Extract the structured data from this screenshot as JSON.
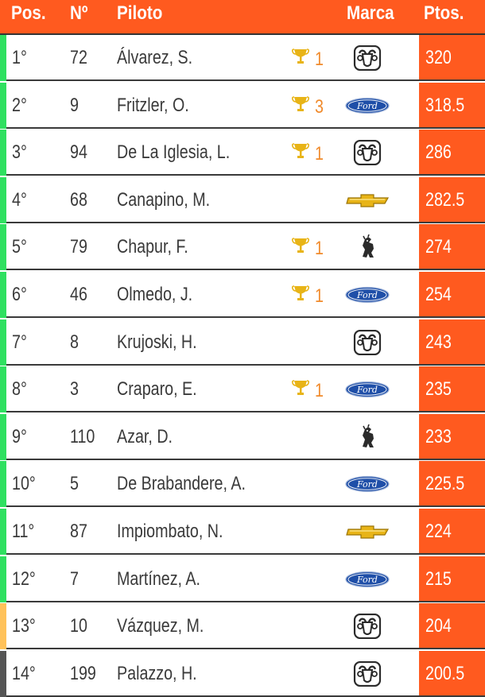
{
  "headers": {
    "pos": "Pos.",
    "num": "Nº",
    "pilot": "Piloto",
    "brand": "Marca",
    "pts": "Ptos."
  },
  "colors": {
    "header": "#ff5a1f",
    "points": "#ff5a1f",
    "wins": "#f08a2b",
    "trophy": "#e8b417",
    "qualify_green": "#2fe060",
    "qualify_amber": "#ffc25a",
    "qualify_dark": "#555555"
  },
  "rows": [
    {
      "pos": "1°",
      "num": "72",
      "name": "Álvarez, S.",
      "wins": "1",
      "brand": "dodge-ram-icon",
      "pts": "320",
      "stripe": "green"
    },
    {
      "pos": "2°",
      "num": "9",
      "name": "Fritzler, O.",
      "wins": "3",
      "brand": "ford-icon",
      "pts": "318.5",
      "stripe": "green"
    },
    {
      "pos": "3°",
      "num": "94",
      "name": "De La Iglesia, L.",
      "wins": "1",
      "brand": "dodge-ram-icon",
      "pts": "286",
      "stripe": "green"
    },
    {
      "pos": "4°",
      "num": "68",
      "name": "Canapino, M.",
      "wins": "",
      "brand": "chevrolet-icon",
      "pts": "282.5",
      "stripe": "green"
    },
    {
      "pos": "5°",
      "num": "79",
      "name": "Chapur, F.",
      "wins": "1",
      "brand": "torino-icon",
      "pts": "274",
      "stripe": "green"
    },
    {
      "pos": "6°",
      "num": "46",
      "name": "Olmedo, J.",
      "wins": "1",
      "brand": "ford-icon",
      "pts": "254",
      "stripe": "green"
    },
    {
      "pos": "7°",
      "num": "8",
      "name": "Krujoski, H.",
      "wins": "",
      "brand": "dodge-ram-icon",
      "pts": "243",
      "stripe": "green"
    },
    {
      "pos": "8°",
      "num": "3",
      "name": "Craparo, E.",
      "wins": "1",
      "brand": "ford-icon",
      "pts": "235",
      "stripe": "green"
    },
    {
      "pos": "9°",
      "num": "110",
      "name": "Azar, D.",
      "wins": "",
      "brand": "torino-icon",
      "pts": "233",
      "stripe": "green"
    },
    {
      "pos": "10°",
      "num": "5",
      "name": "De Brabandere, A.",
      "wins": "",
      "brand": "ford-icon",
      "pts": "225.5",
      "stripe": "green"
    },
    {
      "pos": "11°",
      "num": "87",
      "name": "Impiombato, N.",
      "wins": "",
      "brand": "chevrolet-icon",
      "pts": "224",
      "stripe": "green"
    },
    {
      "pos": "12°",
      "num": "7",
      "name": "Martínez, A.",
      "wins": "",
      "brand": "ford-icon",
      "pts": "215",
      "stripe": "green"
    },
    {
      "pos": "13°",
      "num": "10",
      "name": "Vázquez, M.",
      "wins": "",
      "brand": "dodge-ram-icon",
      "pts": "204",
      "stripe": "amber"
    },
    {
      "pos": "14°",
      "num": "199",
      "name": "Palazzo, H.",
      "wins": "",
      "brand": "dodge-ram-icon",
      "pts": "200.5",
      "stripe": "dark"
    }
  ]
}
